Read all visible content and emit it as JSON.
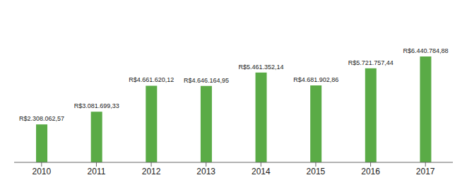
{
  "chart_data": {
    "type": "bar",
    "categories": [
      "2010",
      "2011",
      "2012",
      "2013",
      "2014",
      "2015",
      "2016",
      "2017"
    ],
    "values": [
      2308062.57,
      3081699.33,
      4661620.12,
      4646164.95,
      5461352.14,
      4681902.86,
      5721757.44,
      6440784.88
    ],
    "value_labels": [
      "R$2.308.062,57",
      "R$3.081.699,33",
      "R$4.661.620,12",
      "R$4.646.164,95",
      "R$5.461.352,14",
      "R$4.681.902,86",
      "R$5.721.757,44",
      "R$6.440.784,88"
    ],
    "color": "#5aab46",
    "ylim": [
      0,
      8500000
    ],
    "data_labels": true,
    "tick_labels": "x"
  }
}
